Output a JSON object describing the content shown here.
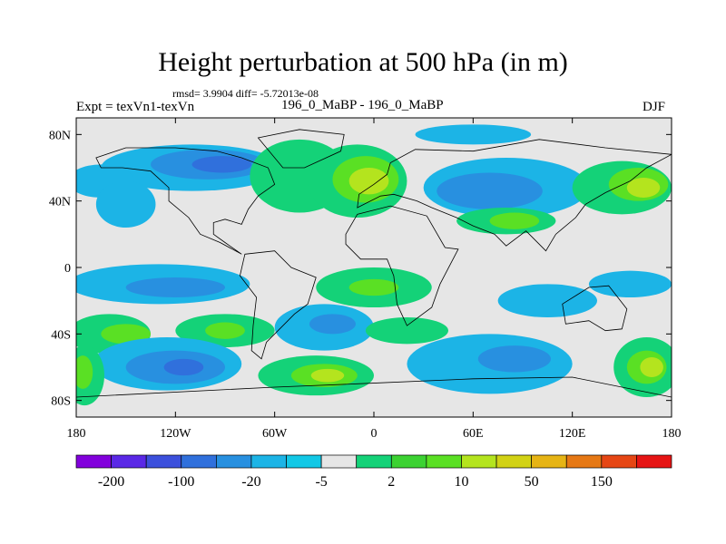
{
  "title": "Height perturbation at 500 hPa (in m)",
  "stats": "rmsd= 3.9904 diff= -5.72013e-08",
  "left_label": "Expt = texVn1-texVn",
  "center_label": "196_0_MaBP - 196_0_MaBP",
  "right_label": "DJF",
  "map": {
    "projection": "cylindrical-equidistant",
    "lon_range": [
      -180,
      180
    ],
    "lat_range": [
      -90,
      90
    ],
    "missing_color": "#e6e6e6",
    "lat_ticks": [
      {
        "value": 80,
        "label": "80N"
      },
      {
        "value": 40,
        "label": "40N"
      },
      {
        "value": 0,
        "label": "0"
      },
      {
        "value": -40,
        "label": "40S"
      },
      {
        "value": -80,
        "label": "80S"
      }
    ],
    "lon_ticks": [
      {
        "value": -180,
        "label": "180"
      },
      {
        "value": -120,
        "label": "120W"
      },
      {
        "value": -60,
        "label": "60W"
      },
      {
        "value": 0,
        "label": "0"
      },
      {
        "value": 60,
        "label": "60E"
      },
      {
        "value": 120,
        "label": "120E"
      },
      {
        "value": 180,
        "label": "180"
      }
    ],
    "fields": [
      {
        "name": "n-pacific-low",
        "lon": -110,
        "lat": 60,
        "rx": 55,
        "ry": 14,
        "color": "#1cb4e6"
      },
      {
        "name": "n-pacific-low-core",
        "lon": -100,
        "lat": 62,
        "rx": 35,
        "ry": 9,
        "color": "#2890e0"
      },
      {
        "name": "n-pacific-low-inner",
        "lon": -92,
        "lat": 62,
        "rx": 18,
        "ry": 5,
        "color": "#3070dc"
      },
      {
        "name": "e-pacific-trough",
        "lon": -165,
        "lat": 52,
        "rx": 20,
        "ry": 10,
        "color": "#1cb4e6"
      },
      {
        "name": "midpac-trough",
        "lon": -150,
        "lat": 38,
        "rx": 18,
        "ry": 14,
        "color": "#1cb4e6"
      },
      {
        "name": "n-america-ridge",
        "lon": -45,
        "lat": 55,
        "rx": 30,
        "ry": 22,
        "color": "#14d278"
      },
      {
        "name": "n-atlantic-ridge",
        "lon": -10,
        "lat": 52,
        "rx": 30,
        "ry": 22,
        "color": "#14d278"
      },
      {
        "name": "n-atlantic-ridge-core",
        "lon": -5,
        "lat": 53,
        "rx": 20,
        "ry": 14,
        "color": "#5ae024"
      },
      {
        "name": "n-atlantic-ridge-inner",
        "lon": -3,
        "lat": 52,
        "rx": 12,
        "ry": 8,
        "color": "#b4e41e"
      },
      {
        "name": "eurasia-low",
        "lon": 80,
        "lat": 48,
        "rx": 50,
        "ry": 18,
        "color": "#1cb4e6"
      },
      {
        "name": "eurasia-low-core",
        "lon": 70,
        "lat": 46,
        "rx": 32,
        "ry": 11,
        "color": "#2890e0"
      },
      {
        "name": "arctic-low",
        "lon": 60,
        "lat": 80,
        "rx": 35,
        "ry": 6,
        "color": "#1cb4e6"
      },
      {
        "name": "asia-ridge",
        "lon": 80,
        "lat": 28,
        "rx": 30,
        "ry": 8,
        "color": "#14d278"
      },
      {
        "name": "asia-ridge-core",
        "lon": 85,
        "lat": 28,
        "rx": 15,
        "ry": 5,
        "color": "#5ae024"
      },
      {
        "name": "w-pacific-ridge",
        "lon": 150,
        "lat": 48,
        "rx": 30,
        "ry": 16,
        "color": "#14d278"
      },
      {
        "name": "w-pacific-ridge-core",
        "lon": 160,
        "lat": 50,
        "rx": 18,
        "ry": 10,
        "color": "#5ae024"
      },
      {
        "name": "w-pacific-ridge-inner",
        "lon": 163,
        "lat": 48,
        "rx": 10,
        "ry": 6,
        "color": "#b4e41e"
      },
      {
        "name": "tropical-low-w",
        "lon": -130,
        "lat": -10,
        "rx": 55,
        "ry": 12,
        "color": "#1cb4e6"
      },
      {
        "name": "tropical-low-w-core",
        "lon": -120,
        "lat": -12,
        "rx": 30,
        "ry": 6,
        "color": "#2890e0"
      },
      {
        "name": "tropical-ridge",
        "lon": 0,
        "lat": -12,
        "rx": 35,
        "ry": 12,
        "color": "#14d278"
      },
      {
        "name": "tropical-ridge-core",
        "lon": 0,
        "lat": -12,
        "rx": 15,
        "ry": 5,
        "color": "#5ae024"
      },
      {
        "name": "tropical-low-e",
        "lon": 105,
        "lat": -20,
        "rx": 30,
        "ry": 10,
        "color": "#1cb4e6"
      },
      {
        "name": "tropical-low-e2",
        "lon": 155,
        "lat": -10,
        "rx": 25,
        "ry": 8,
        "color": "#1cb4e6"
      },
      {
        "name": "s-pacific-ridge",
        "lon": -160,
        "lat": -40,
        "rx": 25,
        "ry": 12,
        "color": "#14d278"
      },
      {
        "name": "s-pacific-ridge-core",
        "lon": -150,
        "lat": -40,
        "rx": 15,
        "ry": 6,
        "color": "#5ae024"
      },
      {
        "name": "se-pacific-ridge",
        "lon": -90,
        "lat": -38,
        "rx": 30,
        "ry": 10,
        "color": "#14d278"
      },
      {
        "name": "se-pacific-ridge-core",
        "lon": -90,
        "lat": -38,
        "rx": 12,
        "ry": 5,
        "color": "#5ae024"
      },
      {
        "name": "s-america-low",
        "lon": -30,
        "lat": -36,
        "rx": 30,
        "ry": 14,
        "color": "#1cb4e6"
      },
      {
        "name": "s-america-low-core",
        "lon": -25,
        "lat": -34,
        "rx": 14,
        "ry": 6,
        "color": "#2890e0"
      },
      {
        "name": "s-atlantic-ridge",
        "lon": 20,
        "lat": -38,
        "rx": 25,
        "ry": 8,
        "color": "#14d278"
      },
      {
        "name": "southern-low-w",
        "lon": -125,
        "lat": -58,
        "rx": 45,
        "ry": 16,
        "color": "#1cb4e6"
      },
      {
        "name": "southern-low-w-core",
        "lon": -120,
        "lat": -60,
        "rx": 30,
        "ry": 10,
        "color": "#2890e0"
      },
      {
        "name": "southern-low-w-inner",
        "lon": -115,
        "lat": -60,
        "rx": 12,
        "ry": 5,
        "color": "#3070dc"
      },
      {
        "name": "southern-ridge-atl",
        "lon": -35,
        "lat": -65,
        "rx": 35,
        "ry": 12,
        "color": "#14d278"
      },
      {
        "name": "southern-ridge-atl-core",
        "lon": -30,
        "lat": -65,
        "rx": 20,
        "ry": 7,
        "color": "#5ae024"
      },
      {
        "name": "southern-ridge-atl-inner",
        "lon": -28,
        "lat": -65,
        "rx": 10,
        "ry": 4,
        "color": "#b4e41e"
      },
      {
        "name": "southern-low-e",
        "lon": 70,
        "lat": -58,
        "rx": 50,
        "ry": 18,
        "color": "#1cb4e6"
      },
      {
        "name": "southern-low-e-core",
        "lon": 85,
        "lat": -55,
        "rx": 22,
        "ry": 8,
        "color": "#2890e0"
      },
      {
        "name": "southern-ridge-w",
        "lon": -175,
        "lat": -65,
        "rx": 12,
        "ry": 18,
        "color": "#14d278"
      },
      {
        "name": "southern-ridge-w-core",
        "lon": -176,
        "lat": -63,
        "rx": 6,
        "ry": 10,
        "color": "#5ae024"
      },
      {
        "name": "southern-ridge-e",
        "lon": 165,
        "lat": -60,
        "rx": 20,
        "ry": 18,
        "color": "#14d278"
      },
      {
        "name": "southern-ridge-e-core",
        "lon": 165,
        "lat": -60,
        "rx": 12,
        "ry": 10,
        "color": "#5ae024"
      },
      {
        "name": "southern-ridge-e-inner",
        "lon": 168,
        "lat": -60,
        "rx": 7,
        "ry": 6,
        "color": "#b4e41e"
      }
    ]
  },
  "colorbar": {
    "colors": [
      "#8200dc",
      "#5a28e6",
      "#3c50dc",
      "#3070dc",
      "#2890e0",
      "#1cb4e6",
      "#12c8e6",
      "#e6e6e6",
      "#14d278",
      "#3cd232",
      "#5ae024",
      "#b4e41e",
      "#d2d214",
      "#e6b414",
      "#e67814",
      "#e64614",
      "#e61414"
    ],
    "labels": [
      {
        "boundary": 1,
        "text": "-200"
      },
      {
        "boundary": 3,
        "text": "-100"
      },
      {
        "boundary": 5,
        "text": "-20"
      },
      {
        "boundary": 7,
        "text": "-5"
      },
      {
        "boundary": 9,
        "text": "2"
      },
      {
        "boundary": 11,
        "text": "10"
      },
      {
        "boundary": 13,
        "text": "50"
      },
      {
        "boundary": 15,
        "text": "150"
      }
    ]
  }
}
